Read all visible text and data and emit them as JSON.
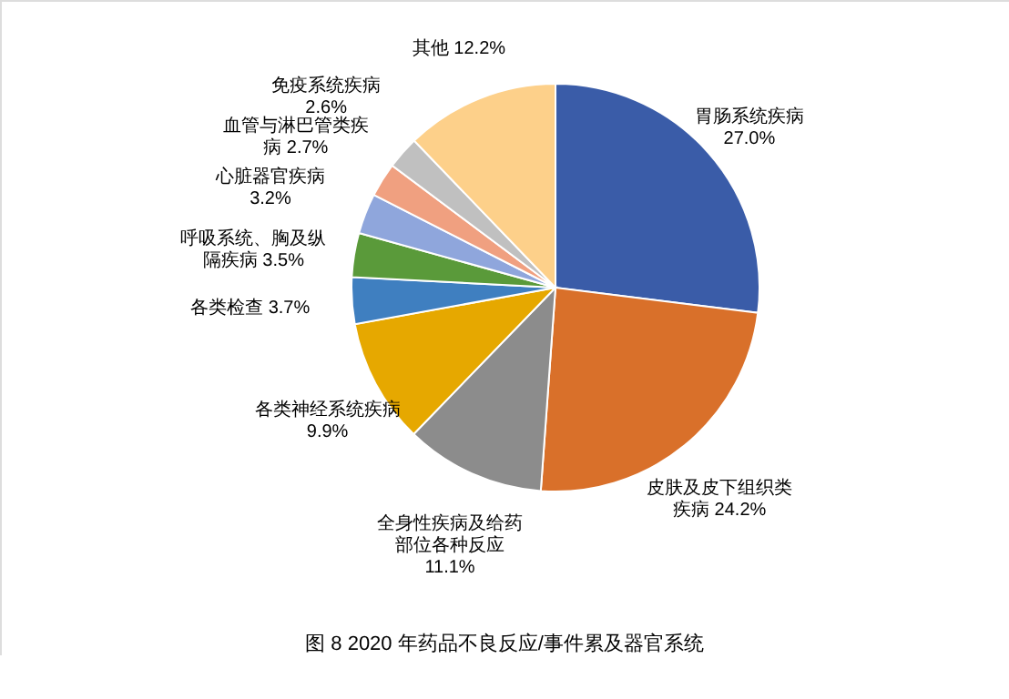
{
  "chart_data": {
    "type": "pie",
    "annotations": [
      "图 8  2020 年药品不良反应/事件累及器官系统"
    ],
    "categories": [
      "胃肠系统疾病",
      "皮肤及皮下组织类疾病",
      "全身性疾病及给药部位各种反应",
      "各类神经系统疾病",
      "各类检查",
      "呼吸系统、胸及纵隔疾病",
      "心脏器官疾病",
      "血管与淋巴管类疾病",
      "免疫系统疾病",
      "其他"
    ],
    "values": [
      27.0,
      24.2,
      11.1,
      9.9,
      3.7,
      3.5,
      3.2,
      2.7,
      2.6,
      12.2
    ],
    "value_labels": [
      "27.0%",
      "24.2%",
      "11.1%",
      "9.9%",
      "3.7%",
      "3.5%",
      "3.2%",
      "2.7%",
      "2.6%",
      "12.2%"
    ],
    "colors": [
      "#3a5ca8",
      "#d9702a",
      "#8c8c8c",
      "#e6a800",
      "#3f7fc0",
      "#5a9a3a",
      "#8fa6dc",
      "#f0a080",
      "#c0c0c0",
      "#fdd08a"
    ]
  }
}
